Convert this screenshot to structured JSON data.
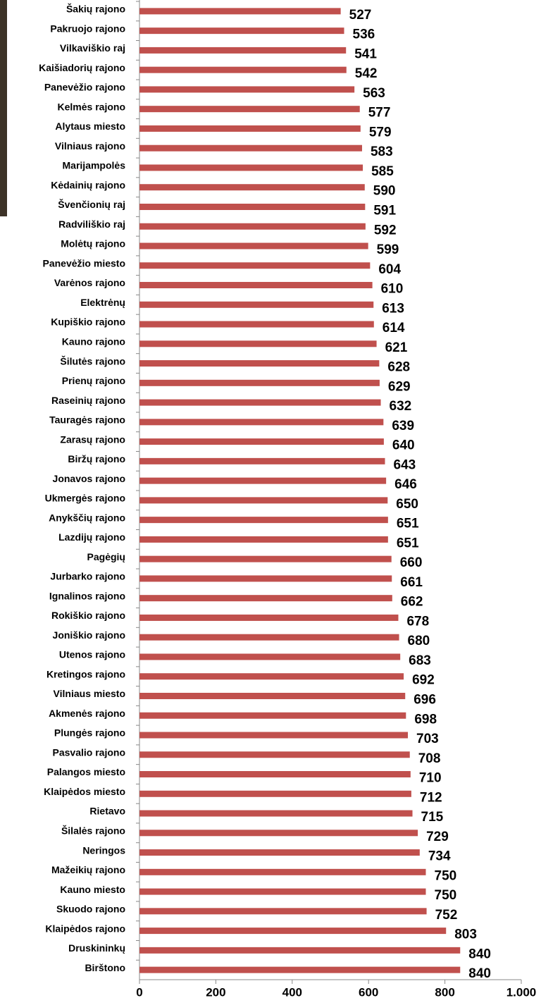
{
  "chart_data": {
    "type": "bar",
    "orientation": "horizontal",
    "categories": [
      "Šakių rajono",
      "Pakruojo rajono",
      "Vilkaviškio raj",
      "Kaišiadorių rajono",
      "Panevėžio rajono",
      "Kelmės rajono",
      "Alytaus miesto",
      "Vilniaus rajono",
      "Marijampolės",
      "Kėdainių rajono",
      "Švenčionių raj",
      "Radviliškio raj",
      "Molėtų rajono",
      "Panevėžio miesto",
      "Varėnos rajono",
      "Elektrėnų",
      "Kupiškio rajono",
      "Kauno rajono",
      "Šilutės rajono",
      "Prienų rajono",
      "Raseinių rajono",
      "Tauragės rajono",
      "Zarasų rajono",
      "Biržų rajono",
      "Jonavos rajono",
      "Ukmergės rajono",
      "Anykščių rajono",
      "Lazdijų rajono",
      "Pagėgių",
      "Jurbarko rajono",
      "Ignalinos rajono",
      "Rokiškio rajono",
      "Joniškio rajono",
      "Utenos rajono",
      "Kretingos rajono",
      "Vilniaus miesto",
      "Akmenės rajono",
      "Plungės rajono",
      "Pasvalio rajono",
      "Palangos miesto",
      "Klaipėdos miesto",
      "Rietavo",
      "Šilalės rajono",
      "Neringos",
      "Mažeikių rajono",
      "Kauno miesto",
      "Skuodo rajono",
      "Klaipėdos rajono",
      "Druskininkų",
      "Birštono"
    ],
    "values": [
      527,
      536,
      541,
      542,
      563,
      577,
      579,
      583,
      585,
      590,
      591,
      592,
      599,
      604,
      610,
      613,
      614,
      621,
      628,
      629,
      632,
      639,
      640,
      643,
      646,
      650,
      651,
      651,
      660,
      661,
      662,
      678,
      680,
      683,
      692,
      696,
      698,
      703,
      708,
      710,
      712,
      715,
      729,
      734,
      750,
      750,
      752,
      803,
      840,
      840
    ],
    "color": "#c0504d",
    "xlim": [
      0,
      1000
    ],
    "xticks": [
      0,
      200,
      400,
      600,
      800,
      {
        "value": 1000,
        "label": "1.000"
      }
    ]
  }
}
